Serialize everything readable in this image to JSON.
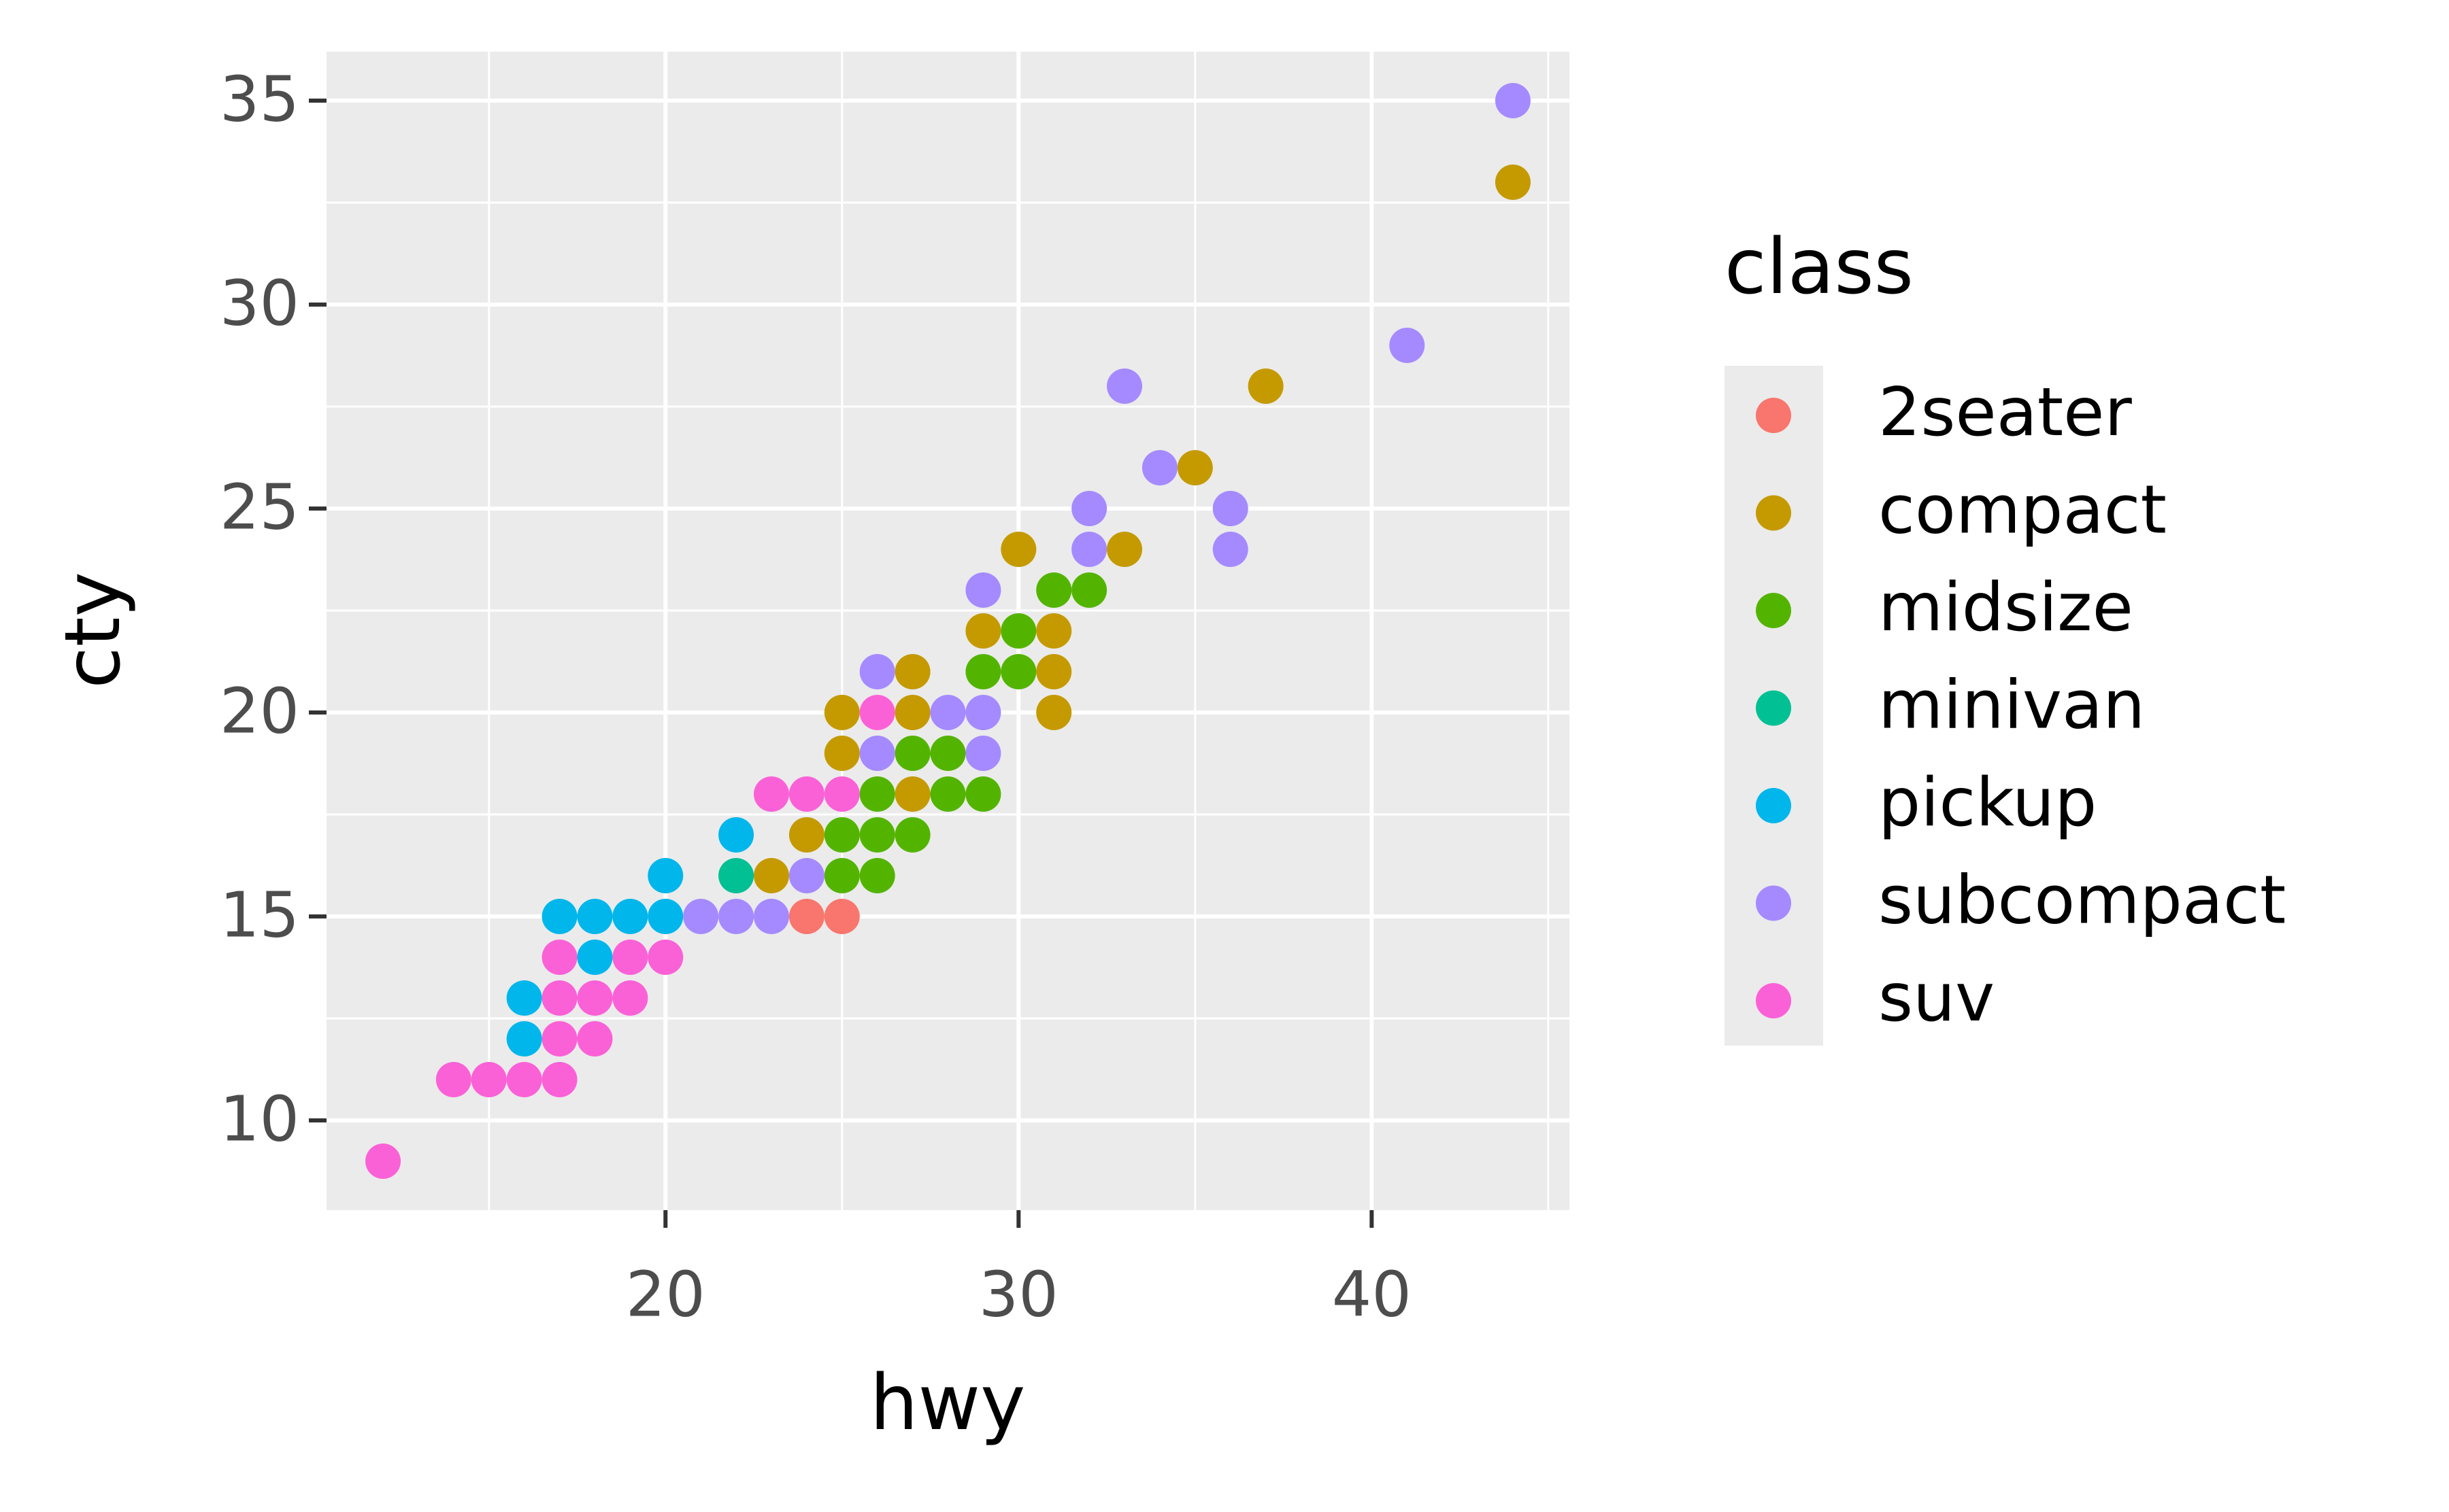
{
  "chart_data": {
    "type": "scatter",
    "x_label": "hwy",
    "y_label": "cty",
    "legend_title": "class",
    "xlim": [
      10.4,
      45.6
    ],
    "ylim": [
      7.8,
      36.2
    ],
    "xticks": [
      20,
      30,
      40
    ],
    "yticks": [
      10,
      15,
      20,
      25,
      30,
      35
    ],
    "xminor": [
      15,
      25,
      35,
      45
    ],
    "yminor": [
      12.5,
      17.5,
      22.5,
      27.5,
      32.5
    ],
    "grid": true,
    "legend": "right",
    "series": [
      {
        "name": "2seater",
        "color": "#F8766D",
        "x": [
          24,
          25
        ],
        "y": [
          15,
          15
        ]
      },
      {
        "name": "compact",
        "color": "#C49A00",
        "x": [
          44,
          37,
          35,
          33,
          30,
          29,
          31,
          31,
          31,
          27,
          27,
          25,
          25,
          24,
          23,
          27
        ],
        "y": [
          33,
          28,
          26,
          24,
          24,
          22,
          22,
          21,
          20,
          21,
          20,
          20,
          19,
          17,
          16,
          18
        ]
      },
      {
        "name": "midsize",
        "color": "#53B400",
        "x": [
          32,
          31,
          30,
          29,
          30,
          27,
          28,
          26,
          28,
          29,
          25,
          26,
          27,
          25,
          26
        ],
        "y": [
          23,
          23,
          22,
          21,
          21,
          19,
          19,
          18,
          18,
          18,
          17,
          17,
          17,
          16,
          16
        ]
      },
      {
        "name": "minivan",
        "color": "#00C094",
        "x": [
          22
        ],
        "y": [
          16
        ]
      },
      {
        "name": "pickup",
        "color": "#00B6EB",
        "x": [
          22,
          20,
          17,
          18,
          19,
          20,
          18,
          16,
          16
        ],
        "y": [
          17,
          16,
          15,
          15,
          15,
          15,
          14,
          13,
          12
        ]
      },
      {
        "name": "subcompact",
        "color": "#A58AFF",
        "x": [
          44,
          41,
          33,
          34,
          36,
          32,
          36,
          32,
          29,
          26,
          28,
          29,
          26,
          29,
          24,
          21,
          22,
          23
        ],
        "y": [
          35,
          29,
          28,
          26,
          25,
          25,
          24,
          24,
          23,
          21,
          20,
          20,
          19,
          19,
          16,
          15,
          15,
          15
        ]
      },
      {
        "name": "suv",
        "color": "#FB61D7",
        "x": [
          12,
          14,
          15,
          16,
          17,
          17,
          18,
          17,
          18,
          19,
          17,
          19,
          20,
          23,
          24,
          25,
          26
        ],
        "y": [
          9,
          11,
          11,
          11,
          11,
          12,
          12,
          13,
          13,
          13,
          14,
          14,
          14,
          18,
          18,
          18,
          20
        ]
      }
    ]
  }
}
